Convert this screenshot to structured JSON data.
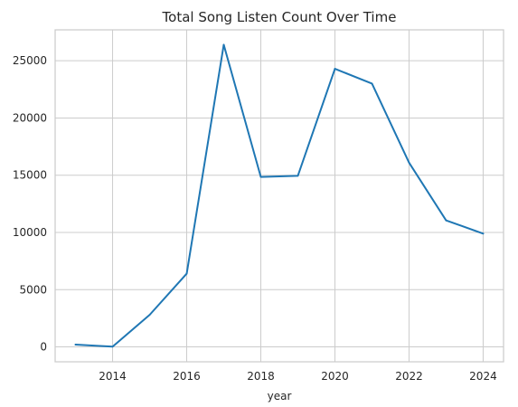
{
  "chart_data": {
    "type": "line",
    "title": "Total Song Listen Count Over Time",
    "xlabel": "year",
    "ylabel": "",
    "x": [
      2013,
      2014,
      2015,
      2016,
      2017,
      2018,
      2019,
      2020,
      2021,
      2022,
      2023,
      2024
    ],
    "series": [
      {
        "values": [
          200,
          20,
          2800,
          6400,
          26400,
          14850,
          14950,
          24300,
          23000,
          16100,
          11050,
          9900
        ],
        "color": "#1f77b4"
      }
    ],
    "xticks": [
      2014,
      2016,
      2018,
      2020,
      2022,
      2024
    ],
    "xtick_labels": [
      "2014",
      "2016",
      "2018",
      "2020",
      "2022",
      "2024"
    ],
    "yticks": [
      0,
      5000,
      10000,
      15000,
      20000,
      25000
    ],
    "ytick_labels": [
      "0",
      "5000",
      "10000",
      "15000",
      "20000",
      "25000"
    ],
    "xlim": [
      2012.45,
      2024.55
    ],
    "ylim": [
      -1300,
      27700
    ],
    "grid": true,
    "legend": false
  }
}
